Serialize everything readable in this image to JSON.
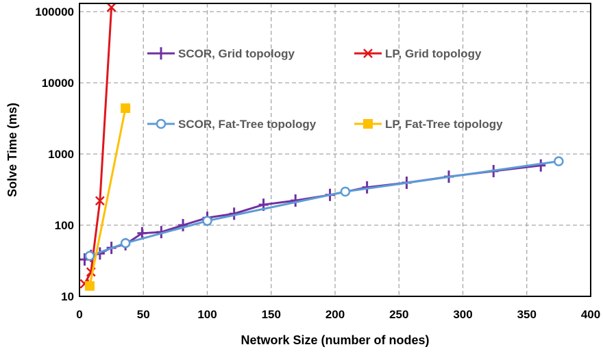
{
  "chart_data": {
    "type": "line",
    "title": "",
    "xlabel": "Network Size (number of nodes)",
    "ylabel": "Solve Time (ms)",
    "xlim": [
      0,
      400
    ],
    "ylim": [
      10,
      100000
    ],
    "yscale": "log",
    "xticks": [
      "0",
      "50",
      "100",
      "150",
      "200",
      "250",
      "300",
      "350",
      "400"
    ],
    "yticks": [
      "10",
      "100",
      "1000",
      "10000",
      "100000"
    ],
    "grid": true,
    "legend_placement": "inside-top, 2x2",
    "series": [
      {
        "name": "SCOR, Grid topology",
        "color": "#7030A0",
        "marker": "plus",
        "x": [
          4,
          9,
          16,
          25,
          36,
          49,
          64,
          81,
          100,
          121,
          144,
          169,
          196,
          225,
          256,
          289,
          324,
          361
        ],
        "y": [
          33,
          37,
          40,
          48,
          54,
          77,
          80,
          100,
          127,
          145,
          194,
          222,
          266,
          340,
          395,
          480,
          575,
          690
        ]
      },
      {
        "name": "LP, Grid topology",
        "color": "#E0161B",
        "marker": "x",
        "x": [
          4,
          9,
          16,
          25
        ],
        "y": [
          15,
          22,
          220,
          115000
        ]
      },
      {
        "name": "SCOR, Fat-Tree topology",
        "color": "#5B9BD5",
        "marker": "circle",
        "x": [
          8,
          36,
          100,
          208,
          375
        ],
        "y": [
          37,
          56,
          115,
          296,
          790
        ]
      },
      {
        "name": "LP, Fat-Tree topology",
        "color": "#FFC000",
        "marker": "square",
        "x": [
          8,
          36
        ],
        "y": [
          14,
          4400
        ]
      }
    ]
  }
}
